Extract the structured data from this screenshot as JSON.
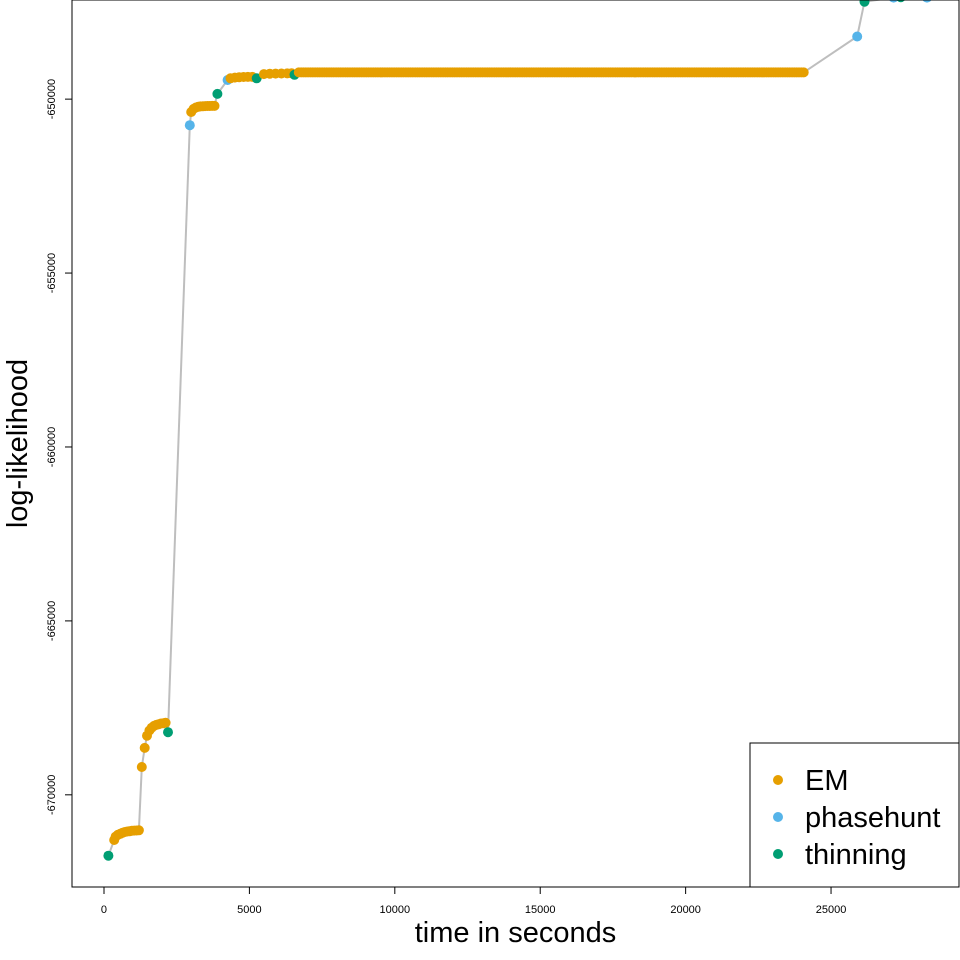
{
  "colors": {
    "EM": "#E69F00",
    "phasehunt": "#56B4E9",
    "thinning": "#009E73",
    "path": "#BEBEBE",
    "frame": "#000000"
  },
  "chart_data": {
    "type": "scatter",
    "title": "",
    "xlabel": "time in seconds",
    "ylabel": "log-likelihood",
    "xlim": [
      -1100,
      29400
    ],
    "ylim": [
      -672650,
      -647150
    ],
    "x_ticks": [
      0,
      5000,
      10000,
      15000,
      20000,
      25000
    ],
    "x_tick_labels": [
      "0",
      "5000",
      "10000",
      "15000",
      "20000",
      "25000"
    ],
    "y_ticks": [
      -650000,
      -655000,
      -660000,
      -665000,
      -670000
    ],
    "y_tick_labels": [
      "-650000",
      "-655000",
      "-660000",
      "-665000",
      "-670000"
    ],
    "grid": false,
    "legend_position": "bottom-right",
    "legend": [
      {
        "name": "EM",
        "color": "#E69F00"
      },
      {
        "name": "phasehunt",
        "color": "#56B4E9"
      },
      {
        "name": "thinning",
        "color": "#009E73"
      }
    ],
    "connecting_line": true,
    "phases": [
      {
        "method": "thinning",
        "x": [
          150
        ],
        "y": [
          -671750
        ]
      },
      {
        "method": "EM",
        "x": [
          350,
          400,
          480,
          560,
          640,
          720,
          800,
          880,
          960,
          1040,
          1120,
          1200
        ],
        "y": [
          -671300,
          -671200,
          -671150,
          -671120,
          -671090,
          -671070,
          -671055,
          -671045,
          -671035,
          -671030,
          -671025,
          -671020
        ]
      },
      {
        "method": "EM",
        "x": [
          1300,
          1400,
          1480,
          1560,
          1640,
          1720,
          1800,
          1880,
          1960,
          2040,
          2120
        ],
        "y": [
          -669200,
          -668650,
          -668300,
          -668150,
          -668070,
          -668020,
          -667990,
          -667970,
          -667950,
          -667940,
          -667930
        ]
      },
      {
        "method": "thinning",
        "x": [
          2200
        ],
        "y": [
          -668200
        ]
      },
      {
        "method": "phasehunt",
        "x": [
          2950
        ],
        "y": [
          -650750
        ]
      },
      {
        "method": "EM",
        "x": [
          3000,
          3080,
          3160,
          3240,
          3320,
          3400,
          3480,
          3560,
          3640,
          3720,
          3800
        ],
        "y": [
          -650370,
          -650280,
          -650240,
          -650220,
          -650210,
          -650205,
          -650200,
          -650198,
          -650196,
          -650195,
          -650194
        ]
      },
      {
        "method": "thinning",
        "x": [
          3900
        ],
        "y": [
          -649850
        ]
      },
      {
        "method": "phasehunt",
        "x": [
          4250
        ],
        "y": [
          -649450
        ]
      },
      {
        "method": "EM",
        "x": [
          4350,
          4500,
          4650,
          4800,
          4950,
          5100
        ],
        "y": [
          -649400,
          -649380,
          -649370,
          -649365,
          -649362,
          -649360
        ]
      },
      {
        "method": "thinning",
        "x": [
          5250
        ],
        "y": [
          -649400
        ]
      },
      {
        "method": "EM",
        "x": [
          5500,
          5700,
          5900,
          6100,
          6300,
          6450
        ],
        "y": [
          -649280,
          -649270,
          -649265,
          -649262,
          -649260,
          -649258
        ]
      },
      {
        "method": "thinning",
        "x": [
          6550
        ],
        "y": [
          -649300
        ]
      },
      {
        "method": "EM",
        "x_range": [
          6700,
          24100
        ],
        "x_step": 80,
        "y_const": -649230
      },
      {
        "method": "phasehunt",
        "x": [
          25900
        ],
        "y": [
          -648200
        ]
      },
      {
        "method": "thinning",
        "x": [
          26150
        ],
        "y": [
          -647200
        ]
      },
      {
        "method": "phasehunt",
        "x": [
          27150
        ],
        "y": [
          -647080
        ]
      },
      {
        "method": "thinning",
        "x": [
          27400
        ],
        "y": [
          -647070
        ]
      },
      {
        "method": "phasehunt",
        "x": [
          28300
        ],
        "y": [
          -647080
        ]
      }
    ]
  }
}
